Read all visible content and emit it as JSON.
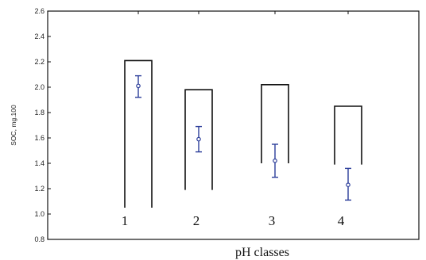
{
  "chart_data": {
    "type": "box",
    "title": "",
    "xlabel": "pH classes",
    "ylabel": "SOC, mg.100",
    "ylim": [
      0.8,
      2.6
    ],
    "yticks": [
      0.8,
      1.0,
      1.2,
      1.4,
      1.6,
      1.8,
      2.0,
      2.2,
      2.4,
      2.6
    ],
    "ytick_labels": [
      "0.8",
      "1.0",
      "1.2",
      "1.4",
      "1.6",
      "1.8",
      "2.0",
      "2.2",
      "2.4",
      "2.6"
    ],
    "categories": [
      "1",
      "2",
      "3",
      "4"
    ],
    "boxes": [
      {
        "category": "1",
        "upper": 2.21,
        "lower": 1.05,
        "mean": 2.01,
        "err_low": 1.92,
        "err_high": 2.09
      },
      {
        "category": "2",
        "upper": 1.98,
        "lower": 1.19,
        "mean": 1.59,
        "err_low": 1.49,
        "err_high": 1.69
      },
      {
        "category": "3",
        "upper": 2.02,
        "lower": 1.4,
        "mean": 1.42,
        "err_low": 1.29,
        "err_high": 1.55
      },
      {
        "category": "4",
        "upper": 1.85,
        "lower": 1.39,
        "mean": 1.23,
        "err_low": 1.11,
        "err_high": 1.36
      }
    ],
    "grid": false,
    "colors": {
      "box": "#111111",
      "error_bar": "#2b3d9a",
      "axis": "#111111"
    }
  }
}
